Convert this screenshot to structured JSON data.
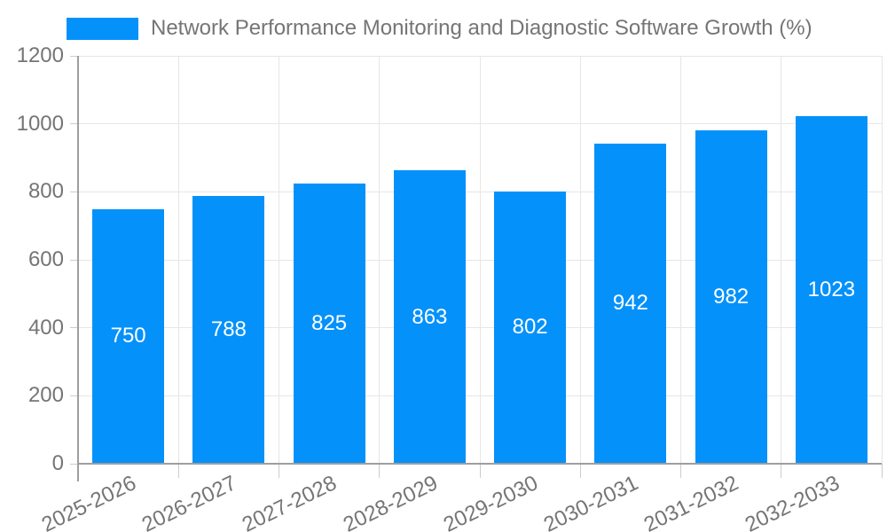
{
  "chart_data": {
    "type": "bar",
    "title": "Network Performance Monitoring and Diagnostic Software Growth (%)",
    "categories": [
      "2025-2026",
      "2026-2027",
      "2027-2028",
      "2028-2029",
      "2029-2030",
      "2030-2031",
      "2031-2032",
      "2032-2033"
    ],
    "values": [
      750,
      788,
      825,
      863,
      802,
      942,
      982,
      1023
    ],
    "xlabel": "",
    "ylabel": "",
    "ylim": [
      0,
      1200
    ],
    "yticks": [
      0,
      200,
      400,
      600,
      800,
      1000,
      1200
    ],
    "grid": "on",
    "legend_position": "top-left",
    "x_tick_rotation": -26,
    "colors": {
      "bar": "#0591fa",
      "value_label": "#ffffff",
      "axis_text": "#757575",
      "legend_text": "#757575",
      "gridline": "#e6e6e6",
      "axis_line": "#9e9e9e",
      "tick": "#cccccc"
    }
  }
}
